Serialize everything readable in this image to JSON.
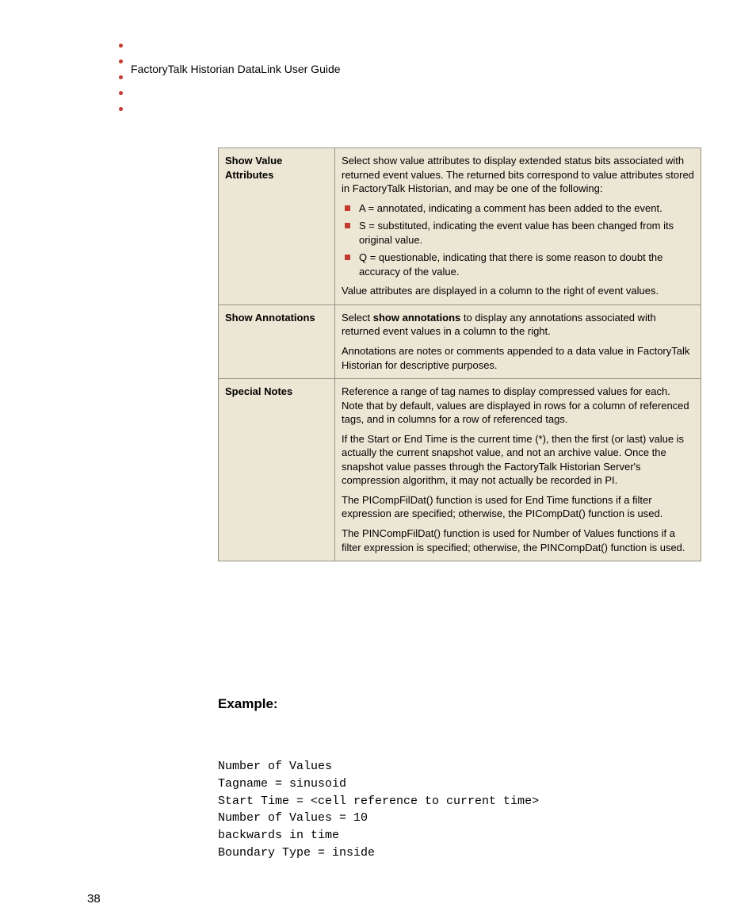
{
  "colors": {
    "accent_red": "#c23b2e",
    "table_bg": "#ece7d4",
    "table_border": "#999187",
    "text": "#000000",
    "page_bg": "#ffffff"
  },
  "header": {
    "title": "FactoryTalk Historian DataLink User Guide"
  },
  "table": {
    "rows": [
      {
        "label": "Show Value Attributes",
        "intro": "Select show value attributes to display extended status bits associated with returned event values. The returned bits correspond to value attributes stored in FactoryTalk Historian, and may be one of the following:",
        "bullets": [
          "A = annotated, indicating a comment has been added to the event.",
          "S = substituted, indicating the event value has been changed from its original value.",
          "Q = questionable, indicating that there is some reason to doubt the accuracy of the value."
        ],
        "outro": "Value attributes are displayed in a column to the right of event values."
      },
      {
        "label": "Show Annotations",
        "p1_pre": "Select ",
        "p1_bold": "show annotations",
        "p1_post": " to display any annotations associated with returned event values in a column to the right.",
        "p2": "Annotations are notes or comments appended to a data value in FactoryTalk Historian for descriptive purposes."
      },
      {
        "label": "Special Notes",
        "p1": "Reference a range of tag names to display compressed values for each. Note that by default, values are displayed in rows for a column of referenced tags, and in columns for a row of referenced tags.",
        "p2": "If the Start or End Time is the current time (*), then the first (or last) value is actually the current snapshot value, and not an archive value. Once the snapshot value passes through the FactoryTalk Historian Server's compression algorithm, it may not actually be recorded in PI.",
        "p3": "The PICompFilDat() function is used for End Time functions if a filter expression are specified; otherwise, the PICompDat() function is used.",
        "p4": "The PINCompFilDat() function is used for Number of Values functions if a filter expression is specified; otherwise, the PINCompDat() function is used."
      }
    ]
  },
  "example": {
    "heading": "Example:",
    "lines": [
      "Number of Values",
      "Tagname = sinusoid",
      "Start Time = <cell reference to current time>",
      "Number of Values = 10",
      "backwards in time",
      "Boundary Type = inside"
    ]
  },
  "page_number": "38"
}
